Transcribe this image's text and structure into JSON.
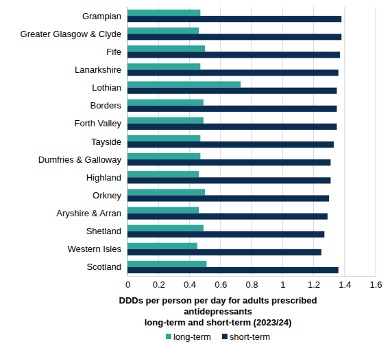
{
  "chart_data": {
    "type": "bar",
    "orientation": "horizontal",
    "title": [
      "DDDs per person per day for adults prescribed",
      "antidepressants",
      "long-term and short-term (2023/24)"
    ],
    "categories": [
      "Grampian",
      "Greater Glasgow & Clyde",
      "Fife",
      "Lanarkshire",
      "Lothian",
      "Borders",
      "Forth Valley",
      "Tayside",
      "Dumfries & Galloway",
      "Highland",
      "Orkney",
      "Aryshire & Arran",
      "Shetland",
      "Western Isles",
      "Scotland"
    ],
    "series": [
      {
        "name": "long-term",
        "color": "#2ea89b",
        "values": [
          0.47,
          0.46,
          0.5,
          0.47,
          0.73,
          0.49,
          0.49,
          0.47,
          0.47,
          0.46,
          0.5,
          0.46,
          0.49,
          0.45,
          0.51
        ]
      },
      {
        "name": "short-term",
        "color": "#0c2d52",
        "values": [
          1.38,
          1.38,
          1.37,
          1.36,
          1.35,
          1.35,
          1.35,
          1.33,
          1.31,
          1.31,
          1.3,
          1.29,
          1.27,
          1.25,
          1.36
        ]
      }
    ],
    "xlim": [
      0,
      1.6
    ],
    "xticks": [
      0,
      0.2,
      0.4,
      0.6,
      0.8,
      1,
      1.2,
      1.4,
      1.6
    ],
    "grid": true,
    "legend": "bottom"
  }
}
